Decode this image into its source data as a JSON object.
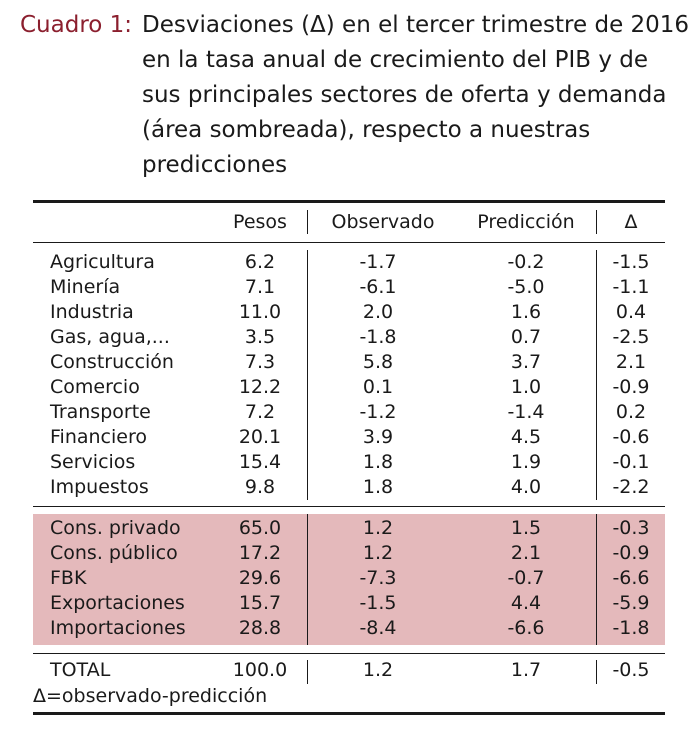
{
  "caption": {
    "label": "Cuadro 1:",
    "text": "Desviaciones (Δ) en el tercer trimestre de 2016 en la tasa anual de crecimiento del PIB y de sus principales sectores de oferta y demanda (área sombreada), respecto a nuestras predicciones"
  },
  "headers": {
    "name": "",
    "pesos": "Pesos",
    "obs": "Observado",
    "pred": "Predicción",
    "delta": "Δ"
  },
  "supply_rows": [
    {
      "name": "Agricultura",
      "pesos": "6.2",
      "obs": "-1.7",
      "pred": "-0.2",
      "delta": "-1.5"
    },
    {
      "name": "Minería",
      "pesos": "7.1",
      "obs": "-6.1",
      "pred": "-5.0",
      "delta": "-1.1"
    },
    {
      "name": "Industria",
      "pesos": "11.0",
      "obs": "2.0",
      "pred": "1.6",
      "delta": "0.4"
    },
    {
      "name": "Gas, agua,...",
      "pesos": "3.5",
      "obs": "-1.8",
      "pred": "0.7",
      "delta": "-2.5"
    },
    {
      "name": "Construcción",
      "pesos": "7.3",
      "obs": "5.8",
      "pred": "3.7",
      "delta": "2.1"
    },
    {
      "name": "Comercio",
      "pesos": "12.2",
      "obs": "0.1",
      "pred": "1.0",
      "delta": "-0.9"
    },
    {
      "name": "Transporte",
      "pesos": "7.2",
      "obs": "-1.2",
      "pred": "-1.4",
      "delta": "0.2"
    },
    {
      "name": "Financiero",
      "pesos": "20.1",
      "obs": "3.9",
      "pred": "4.5",
      "delta": "-0.6"
    },
    {
      "name": "Servicios",
      "pesos": "15.4",
      "obs": "1.8",
      "pred": "1.9",
      "delta": "-0.1"
    },
    {
      "name": "Impuestos",
      "pesos": "9.8",
      "obs": "1.8",
      "pred": "4.0",
      "delta": "-2.2"
    }
  ],
  "demand_rows": [
    {
      "name": "Cons. privado",
      "pesos": "65.0",
      "obs": "1.2",
      "pred": "1.5",
      "delta": "-0.3"
    },
    {
      "name": "Cons. público",
      "pesos": "17.2",
      "obs": "1.2",
      "pred": "2.1",
      "delta": "-0.9"
    },
    {
      "name": "FBK",
      "pesos": "29.6",
      "obs": "-7.3",
      "pred": "-0.7",
      "delta": "-6.6"
    },
    {
      "name": "Exportaciones",
      "pesos": "15.7",
      "obs": "-1.5",
      "pred": "4.4",
      "delta": "-5.9"
    },
    {
      "name": "Importaciones",
      "pesos": "28.8",
      "obs": "-8.4",
      "pred": "-6.6",
      "delta": "-1.8"
    }
  ],
  "total_row": {
    "name": "TOTAL",
    "pesos": "100.0",
    "obs": "1.2",
    "pred": "1.7",
    "delta": "-0.5"
  },
  "note": "Δ=observado-predicción",
  "colors": {
    "caption_label": "#8b1f2e",
    "shaded_band": "#e4b9bb",
    "text": "#1a1a1a"
  }
}
